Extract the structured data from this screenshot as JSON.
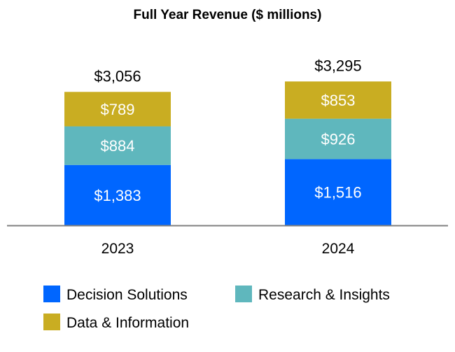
{
  "chart_data": {
    "type": "bar",
    "stacked": true,
    "title": "Full Year Revenue ($ millions)",
    "xlabel": "",
    "ylabel": "",
    "categories": [
      "2023",
      "2024"
    ],
    "series": [
      {
        "name": "Decision Solutions",
        "values": [
          1383,
          1516
        ],
        "labels": [
          "$1,383",
          "$1,516"
        ],
        "color": "#0066FF"
      },
      {
        "name": "Research & Insights",
        "values": [
          884,
          926
        ],
        "labels": [
          "$884",
          "$926"
        ],
        "color": "#5FB7BD"
      },
      {
        "name": "Data & Information",
        "values": [
          789,
          853
        ],
        "labels": [
          "$789",
          "$853"
        ],
        "color": "#C9AD22"
      }
    ],
    "totals": [
      3056,
      3295
    ],
    "total_labels": [
      "$3,056",
      "$3,295"
    ],
    "ylim": [
      0,
      3300
    ],
    "grid": false,
    "legend_position": "bottom"
  }
}
